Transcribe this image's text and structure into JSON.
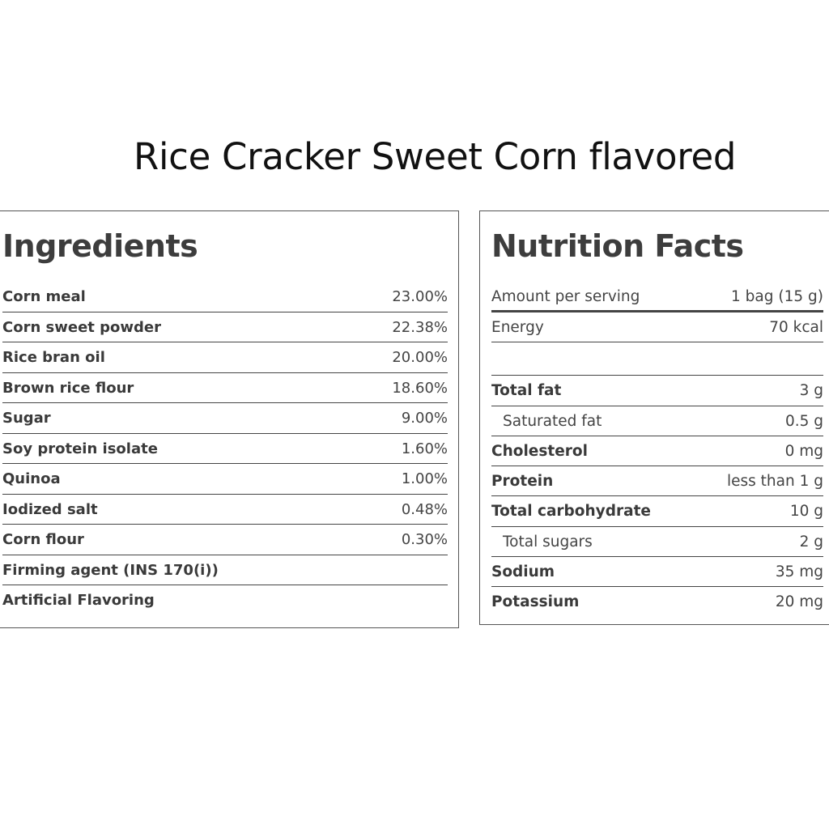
{
  "title": "Rice Cracker Sweet Corn flavored",
  "ingredients": {
    "heading": "Ingredients",
    "items": [
      {
        "name": "Corn meal",
        "value": "23.00%"
      },
      {
        "name": "Corn sweet powder",
        "value": "22.38%"
      },
      {
        "name": "Rice bran oil",
        "value": "20.00%"
      },
      {
        "name": "Brown rice flour",
        "value": "18.60%"
      },
      {
        "name": "Sugar",
        "value": "9.00%"
      },
      {
        "name": "Soy protein isolate",
        "value": "1.60%"
      },
      {
        "name": "Quinoa",
        "value": "1.00%"
      },
      {
        "name": "Iodized salt",
        "value": "0.48%"
      },
      {
        "name": "Corn flour",
        "value": "0.30%"
      },
      {
        "name": "Firming agent (INS 170(i))",
        "value": ""
      },
      {
        "name": "Artificial Flavoring",
        "value": ""
      }
    ]
  },
  "nutrition": {
    "heading": "Nutrition Facts",
    "serving": {
      "name": "Amount per serving",
      "value": "1 bag (15 g)"
    },
    "energy": {
      "name": "Energy",
      "value": "70 kcal"
    },
    "items": [
      {
        "name": "Total fat",
        "value": "3 g"
      },
      {
        "name": "Saturated fat",
        "value": "0.5 g"
      },
      {
        "name": "Cholesterol",
        "value": "0 mg"
      },
      {
        "name": "Protein",
        "value": "less than 1 g"
      },
      {
        "name": "Total carbohydrate",
        "value": "10 g"
      },
      {
        "name": "Total sugars",
        "value": "2 g"
      },
      {
        "name": "Sodium",
        "value": "35 mg"
      },
      {
        "name": "Potassium",
        "value": "20 mg"
      }
    ]
  }
}
